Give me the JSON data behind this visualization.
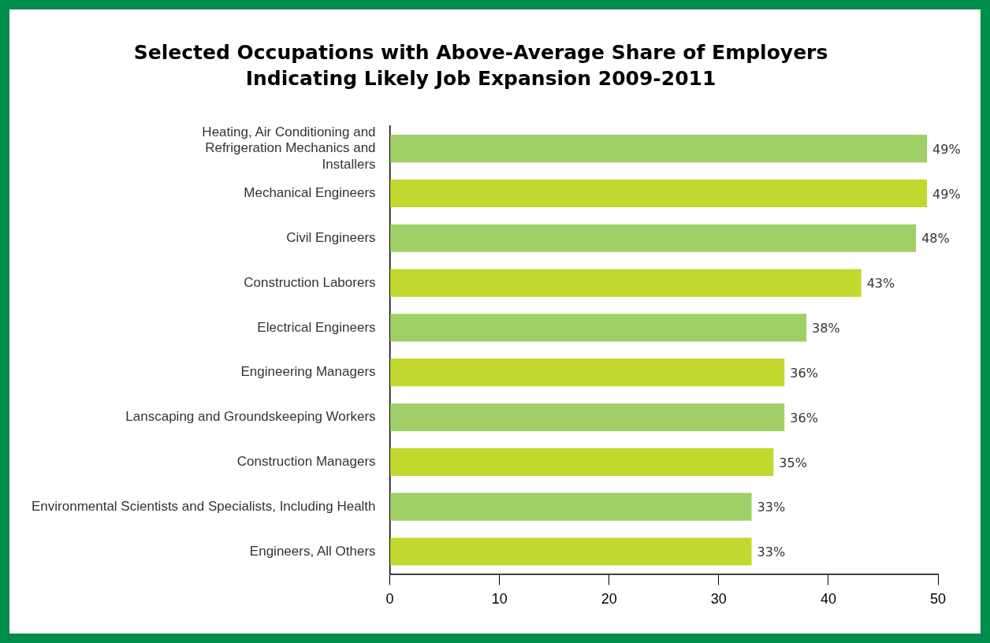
{
  "chart_data": {
    "type": "bar",
    "orientation": "horizontal",
    "title": "Selected Occupations with Above-Average Share of Employers Indicating Likely Job Expansion 2009-2011",
    "categories": [
      "Heating, Air Conditioning and Refrigeration Mechanics and Installers",
      "Mechanical Engineers",
      "Civil Engineers",
      "Construction Laborers",
      "Electrical Engineers",
      "Engineering Managers",
      "Lanscaping and Groundskeeping Workers",
      "Construction Managers",
      "Environmental Scientists and Specialists, Including Health",
      "Engineers, All Others"
    ],
    "values": [
      49,
      49,
      48,
      43,
      38,
      36,
      36,
      35,
      33,
      33
    ],
    "colors": [
      "#a0cf67",
      "#c2d82e",
      "#a0cf67",
      "#c2d82e",
      "#a0cf67",
      "#c2d82e",
      "#a0cf67",
      "#c2d82e",
      "#a0cf67",
      "#c2d82e"
    ],
    "value_labels": [
      "49%",
      "49%",
      "48%",
      "43%",
      "38%",
      "36%",
      "36%",
      "35%",
      "33%",
      "33%"
    ],
    "xlim": [
      0,
      50
    ],
    "xticks": [
      0,
      10,
      20,
      30,
      40,
      50
    ],
    "grid": false,
    "legend": false
  }
}
